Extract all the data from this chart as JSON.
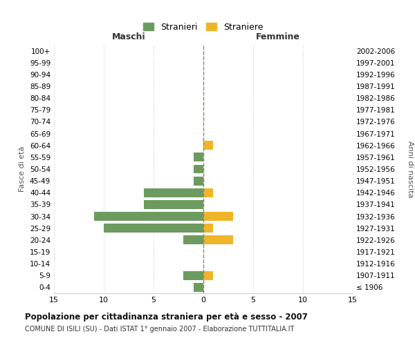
{
  "age_groups": [
    "100+",
    "95-99",
    "90-94",
    "85-89",
    "80-84",
    "75-79",
    "70-74",
    "65-69",
    "60-64",
    "55-59",
    "50-54",
    "45-49",
    "40-44",
    "35-39",
    "30-34",
    "25-29",
    "20-24",
    "15-19",
    "10-14",
    "5-9",
    "0-4"
  ],
  "birth_years": [
    "≤ 1906",
    "1907-1911",
    "1912-1916",
    "1917-1921",
    "1922-1926",
    "1927-1931",
    "1932-1936",
    "1937-1941",
    "1942-1946",
    "1947-1951",
    "1952-1956",
    "1957-1961",
    "1962-1966",
    "1967-1971",
    "1972-1976",
    "1977-1981",
    "1982-1986",
    "1987-1991",
    "1992-1996",
    "1997-2001",
    "2002-2006"
  ],
  "maschi": [
    0,
    0,
    0,
    0,
    0,
    0,
    0,
    0,
    0,
    1,
    1,
    1,
    6,
    6,
    11,
    10,
    2,
    0,
    0,
    2,
    1
  ],
  "femmine": [
    0,
    0,
    0,
    0,
    0,
    0,
    0,
    0,
    1,
    0,
    0,
    0,
    1,
    0,
    3,
    1,
    3,
    0,
    0,
    1,
    0
  ],
  "maschi_color": "#6d9b5f",
  "femmine_color": "#f0b429",
  "title": "Popolazione per cittadinanza straniera per età e sesso - 2007",
  "subtitle": "COMUNE DI ISILI (SU) - Dati ISTAT 1° gennaio 2007 - Elaborazione TUTTITALIA.IT",
  "xlabel_left": "Maschi",
  "xlabel_right": "Femmine",
  "ylabel_left": "Fasce di età",
  "ylabel_right": "Anni di nascita",
  "legend_maschi": "Stranieri",
  "legend_femmine": "Straniere",
  "xlim": 15,
  "background_color": "#ffffff",
  "grid_color": "#cccccc",
  "bar_height": 0.75
}
